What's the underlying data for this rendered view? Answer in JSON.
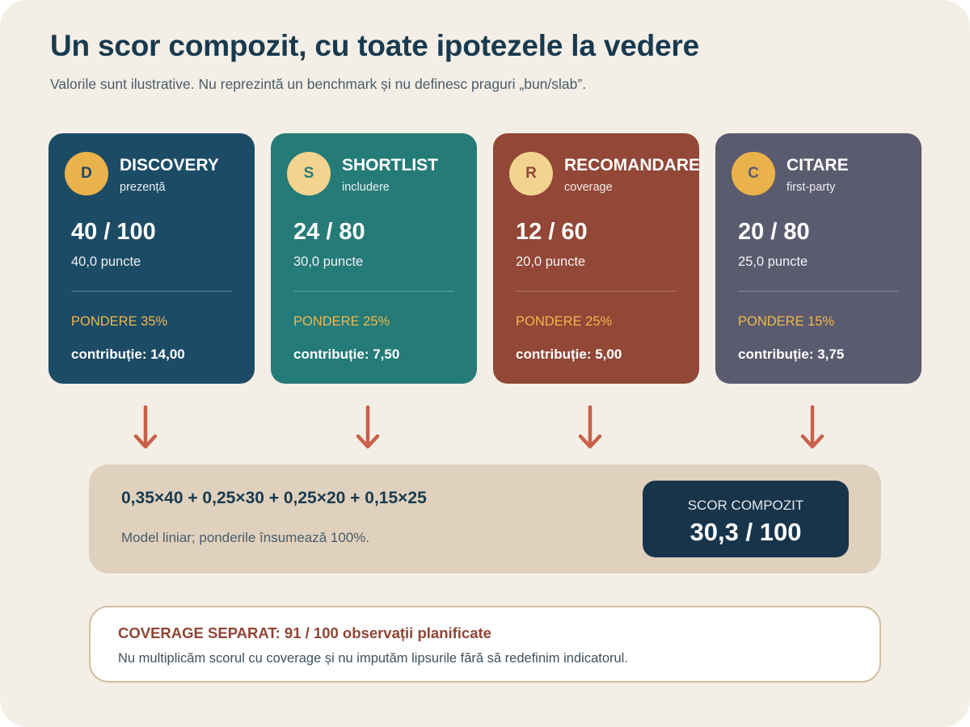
{
  "title": "Un scor compozit, cu toate ipotezele la vedere",
  "subtitle": "Valorile sunt ilustrative. Nu reprezintă un benchmark și nu definesc praguri „bun/slab”.",
  "colors": {
    "background": "#f3eee6",
    "title": "#183a4f",
    "weight_label": "#f0b84a",
    "arrow": "#c9614a",
    "formula_box": "#dfd1bd",
    "result_box": "#17344b",
    "coverage_title": "#904535"
  },
  "cards": [
    {
      "letter": "D",
      "name": "DISCOVERY",
      "subtitle": "prezență",
      "score": "40 / 100",
      "points": "40,0 puncte",
      "weight": "PONDERE 35%",
      "contribution": "contribuție: 14,00",
      "color": "#1c4b66",
      "badge_color": "#eab24a",
      "badge_text_color": "#1c4b66"
    },
    {
      "letter": "S",
      "name": "SHORTLIST",
      "subtitle": "includere",
      "score": "24 / 80",
      "points": "30,0 puncte",
      "weight": "PONDERE 25%",
      "contribution": "contribuție: 7,50",
      "color": "#257b78",
      "badge_color": "#f2d38f",
      "badge_text_color": "#257b78"
    },
    {
      "letter": "R",
      "name": "RECOMANDARE",
      "subtitle": "coverage",
      "score": "12 / 60",
      "points": "20,0 puncte",
      "weight": "PONDERE 25%",
      "contribution": "contribuție: 5,00",
      "color": "#924737",
      "badge_color": "#f2d38f",
      "badge_text_color": "#924737"
    },
    {
      "letter": "C",
      "name": "CITARE",
      "subtitle": "first-party",
      "score": "20 / 80",
      "points": "25,0 puncte",
      "weight": "PONDERE 15%",
      "contribution": "contribuție: 3,75",
      "color": "#5b5b70",
      "badge_color": "#eab24a",
      "badge_text_color": "#5b5b70"
    }
  ],
  "formula": {
    "expression": "0,35×40 + 0,25×30 + 0,25×20 + 0,15×25",
    "note": "Model liniar; ponderile însumează 100%.",
    "result_label": "SCOR COMPOZIT",
    "result_value": "30,3 / 100"
  },
  "coverage": {
    "title": "COVERAGE SEPARAT: 91 / 100 observații planificate",
    "note": "Nu multiplicăm scorul cu coverage și nu imputăm lipsurile fără să redefinim indicatorul."
  }
}
